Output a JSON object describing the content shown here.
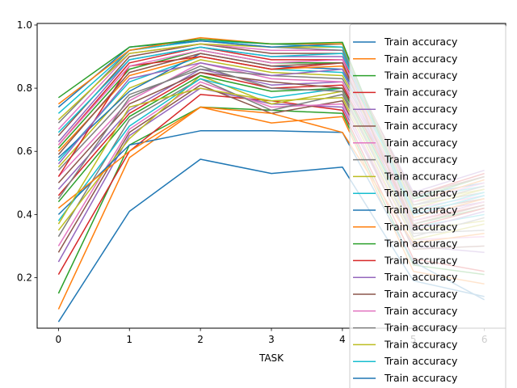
{
  "chart_data": {
    "type": "line",
    "title": "",
    "xlabel": "TASK",
    "ylabel": "",
    "x": [
      0,
      1,
      2,
      3,
      4,
      5,
      6
    ],
    "xlim": [
      -0.3,
      6.3
    ],
    "ylim": [
      0.04,
      1.005
    ],
    "x_ticks": [
      "0",
      "1",
      "2",
      "3",
      "4",
      "5",
      "6"
    ],
    "y_ticks": [
      "0.2",
      "0.4",
      "0.6",
      "0.8",
      "1.0"
    ],
    "y_tick_values": [
      0.2,
      0.4,
      0.6,
      0.8,
      1.0
    ],
    "grid": false,
    "legend_position": "upper-right",
    "legend_entries": [
      "Train accuracy",
      "Train accuracy",
      "Train accuracy",
      "Train accuracy",
      "Train accuracy",
      "Train accuracy",
      "Train accuracy",
      "Train accuracy",
      "Train accuracy",
      "Train accuracy",
      "Train accuracy",
      "Train accuracy",
      "Train accuracy",
      "Train accuracy",
      "Train accuracy",
      "Train accuracy",
      "Train accuracy",
      "Train accuracy",
      "Train accuracy",
      "Train accuracy",
      "Train accuracy"
    ],
    "colors": [
      "#1f77b4",
      "#ff7f0e",
      "#2ca02c",
      "#d62728",
      "#9467bd",
      "#8c564b",
      "#e377c2",
      "#7f7f7f",
      "#bcbd22",
      "#17becf"
    ],
    "series": [
      {
        "values": [
          0.06,
          0.41,
          0.575,
          0.53,
          0.55,
          0.19,
          0.14
        ]
      },
      {
        "values": [
          0.1,
          0.58,
          0.74,
          0.69,
          0.71,
          0.22,
          0.18
        ]
      },
      {
        "values": [
          0.15,
          0.62,
          0.74,
          0.73,
          0.72,
          0.24,
          0.21
        ]
      },
      {
        "values": [
          0.21,
          0.6,
          0.78,
          0.76,
          0.73,
          0.26,
          0.22
        ]
      },
      {
        "values": [
          0.25,
          0.65,
          0.8,
          0.75,
          0.74,
          0.3,
          0.28
        ]
      },
      {
        "values": [
          0.28,
          0.66,
          0.81,
          0.72,
          0.76,
          0.29,
          0.3
        ]
      },
      {
        "values": [
          0.3,
          0.67,
          0.82,
          0.74,
          0.75,
          0.32,
          0.33
        ]
      },
      {
        "values": [
          0.33,
          0.7,
          0.83,
          0.73,
          0.78,
          0.34,
          0.35
        ]
      },
      {
        "values": [
          0.35,
          0.64,
          0.84,
          0.75,
          0.79,
          0.35,
          0.38
        ]
      },
      {
        "values": [
          0.38,
          0.68,
          0.83,
          0.77,
          0.8,
          0.36,
          0.4
        ]
      },
      {
        "values": [
          0.4,
          0.62,
          0.665,
          0.665,
          0.66,
          0.25,
          0.13
        ]
      },
      {
        "values": [
          0.42,
          0.6,
          0.74,
          0.72,
          0.66,
          0.31,
          0.34
        ]
      },
      {
        "values": [
          0.44,
          0.71,
          0.84,
          0.79,
          0.8,
          0.37,
          0.42
        ]
      },
      {
        "values": [
          0.46,
          0.72,
          0.85,
          0.8,
          0.81,
          0.38,
          0.43
        ]
      },
      {
        "values": [
          0.48,
          0.73,
          0.86,
          0.81,
          0.82,
          0.4,
          0.44
        ]
      },
      {
        "values": [
          0.5,
          0.75,
          0.85,
          0.82,
          0.8,
          0.41,
          0.45
        ]
      },
      {
        "values": [
          0.52,
          0.76,
          0.88,
          0.83,
          0.82,
          0.42,
          0.46
        ]
      },
      {
        "values": [
          0.54,
          0.78,
          0.86,
          0.84,
          0.83,
          0.43,
          0.47
        ]
      },
      {
        "values": [
          0.55,
          0.8,
          0.89,
          0.85,
          0.84,
          0.44,
          0.48
        ]
      },
      {
        "values": [
          0.57,
          0.82,
          0.9,
          0.86,
          0.85,
          0.45,
          0.49
        ]
      },
      {
        "values": [
          0.58,
          0.79,
          0.91,
          0.87,
          0.86,
          0.46,
          0.5
        ]
      },
      {
        "values": [
          0.6,
          0.84,
          0.9,
          0.86,
          0.87,
          0.44,
          0.51
        ]
      },
      {
        "values": [
          0.61,
          0.86,
          0.92,
          0.88,
          0.88,
          0.45,
          0.52
        ]
      },
      {
        "values": [
          0.62,
          0.88,
          0.93,
          0.89,
          0.89,
          0.46,
          0.53
        ]
      },
      {
        "values": [
          0.63,
          0.89,
          0.93,
          0.9,
          0.9,
          0.47,
          0.54
        ]
      },
      {
        "values": [
          0.65,
          0.9,
          0.94,
          0.91,
          0.91,
          0.46,
          0.52
        ]
      },
      {
        "values": [
          0.67,
          0.91,
          0.94,
          0.92,
          0.92,
          0.44,
          0.5
        ]
      },
      {
        "values": [
          0.69,
          0.92,
          0.95,
          0.93,
          0.92,
          0.43,
          0.49
        ]
      },
      {
        "values": [
          0.7,
          0.91,
          0.94,
          0.93,
          0.93,
          0.42,
          0.48
        ]
      },
      {
        "values": [
          0.72,
          0.92,
          0.95,
          0.94,
          0.93,
          0.41,
          0.47
        ]
      },
      {
        "values": [
          0.74,
          0.93,
          0.95,
          0.93,
          0.94,
          0.4,
          0.46
        ]
      },
      {
        "values": [
          0.75,
          0.92,
          0.96,
          0.94,
          0.94,
          0.39,
          0.45
        ]
      },
      {
        "values": [
          0.77,
          0.93,
          0.955,
          0.94,
          0.945,
          0.38,
          0.44
        ]
      },
      {
        "values": [
          0.52,
          0.87,
          0.9,
          0.86,
          0.88,
          0.36,
          0.42
        ]
      },
      {
        "values": [
          0.56,
          0.83,
          0.88,
          0.84,
          0.86,
          0.35,
          0.41
        ]
      },
      {
        "values": [
          0.59,
          0.85,
          0.91,
          0.87,
          0.88,
          0.37,
          0.43
        ]
      },
      {
        "values": [
          0.62,
          0.87,
          0.92,
          0.88,
          0.89,
          0.38,
          0.44
        ]
      },
      {
        "values": [
          0.45,
          0.77,
          0.87,
          0.8,
          0.79,
          0.33,
          0.39
        ]
      },
      {
        "values": [
          0.37,
          0.74,
          0.8,
          0.76,
          0.77,
          0.32,
          0.37
        ]
      },
      {
        "values": [
          0.66,
          0.89,
          0.93,
          0.9,
          0.91,
          0.4,
          0.46
        ]
      }
    ]
  }
}
